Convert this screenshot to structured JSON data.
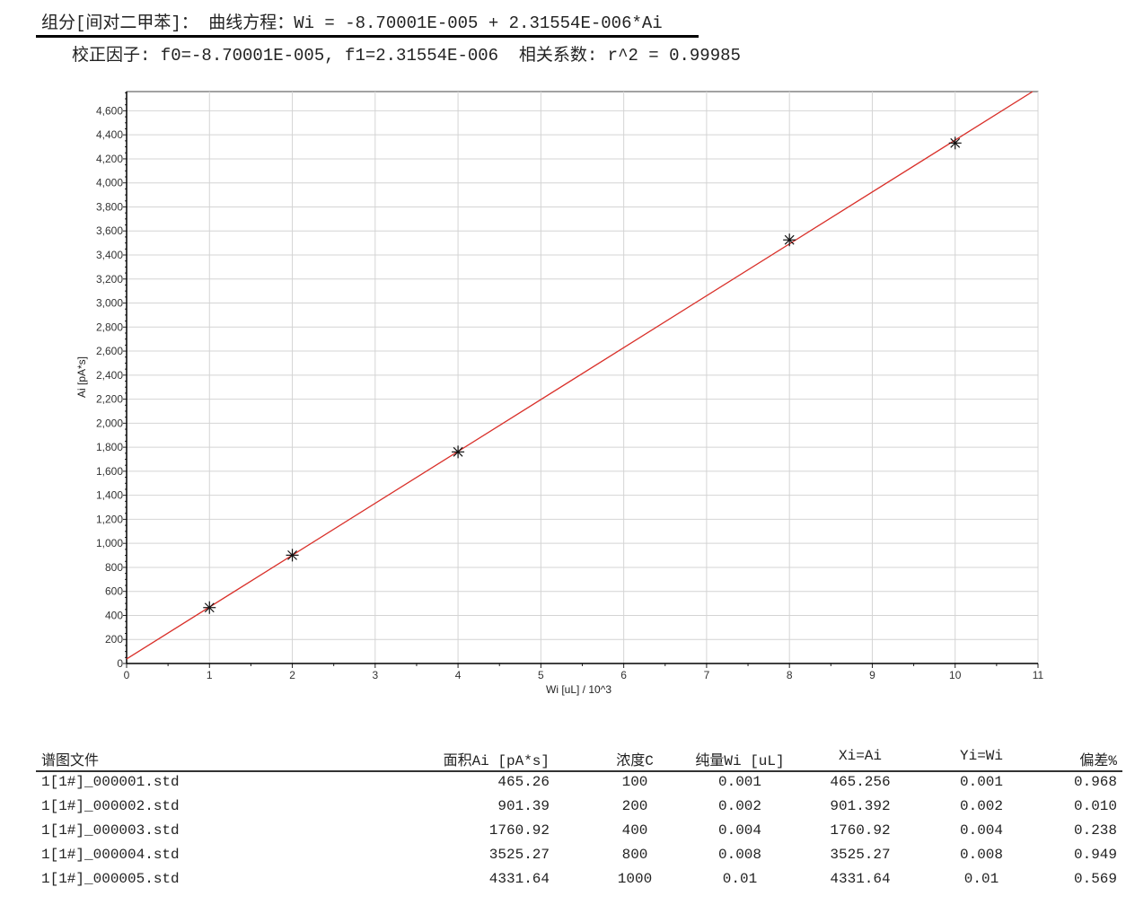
{
  "header": {
    "equation_line": "组分[间对二甲苯]： 曲线方程：Wi = -8.70001E-005 + 2.31554E-006*Ai",
    "factors_line": "校正因子: f0=-8.70001E-005, f1=2.31554E-006  相关系数: r^2 = 0.99985"
  },
  "chart_data": {
    "type": "scatter",
    "xlabel": "Wi [uL] / 10^3",
    "ylabel": "Ai [pA*s]",
    "xlim": [
      0,
      11
    ],
    "ylim": [
      0,
      4760
    ],
    "xticks": [
      "0",
      "1",
      "2",
      "3",
      "4",
      "5",
      "6",
      "7",
      "8",
      "9",
      "10",
      "11"
    ],
    "yticks": [
      "0",
      "200",
      "400",
      "600",
      "800",
      "1,000",
      "1,200",
      "1,400",
      "1,600",
      "1,800",
      "2,000",
      "2,200",
      "2,400",
      "2,600",
      "2,800",
      "3,000",
      "3,200",
      "3,400",
      "3,600",
      "3,800",
      "4,000",
      "4,200",
      "4,400",
      "4,600"
    ],
    "grid": true,
    "points": [
      [
        1,
        465.26
      ],
      [
        2,
        901.39
      ],
      [
        4,
        1760.92
      ],
      [
        8,
        3525.27
      ],
      [
        10,
        4331.64
      ]
    ],
    "marker": "asterisk",
    "fit_line": {
      "intercept": 37.57,
      "slope": 431.87,
      "color": "#d9302a"
    }
  },
  "table": {
    "headers": [
      "谱图文件",
      "面积Ai [pA*s]",
      "浓度C",
      "纯量Wi [uL]",
      "Xi=Ai",
      "Yi=Wi",
      "偏差%"
    ],
    "rows": [
      [
        "1[1#]_000001.std",
        "465.26",
        "100",
        "0.001",
        "465.256",
        "0.001",
        "0.968"
      ],
      [
        "1[1#]_000002.std",
        "901.39",
        "200",
        "0.002",
        "901.392",
        "0.002",
        "0.010"
      ],
      [
        "1[1#]_000003.std",
        "1760.92",
        "400",
        "0.004",
        "1760.92",
        "0.004",
        "0.238"
      ],
      [
        "1[1#]_000004.std",
        "3525.27",
        "800",
        "0.008",
        "3525.27",
        "0.008",
        "0.949"
      ],
      [
        "1[1#]_000005.std",
        "4331.64",
        "1000",
        "0.01",
        "4331.64",
        "0.01",
        "0.569"
      ]
    ]
  }
}
